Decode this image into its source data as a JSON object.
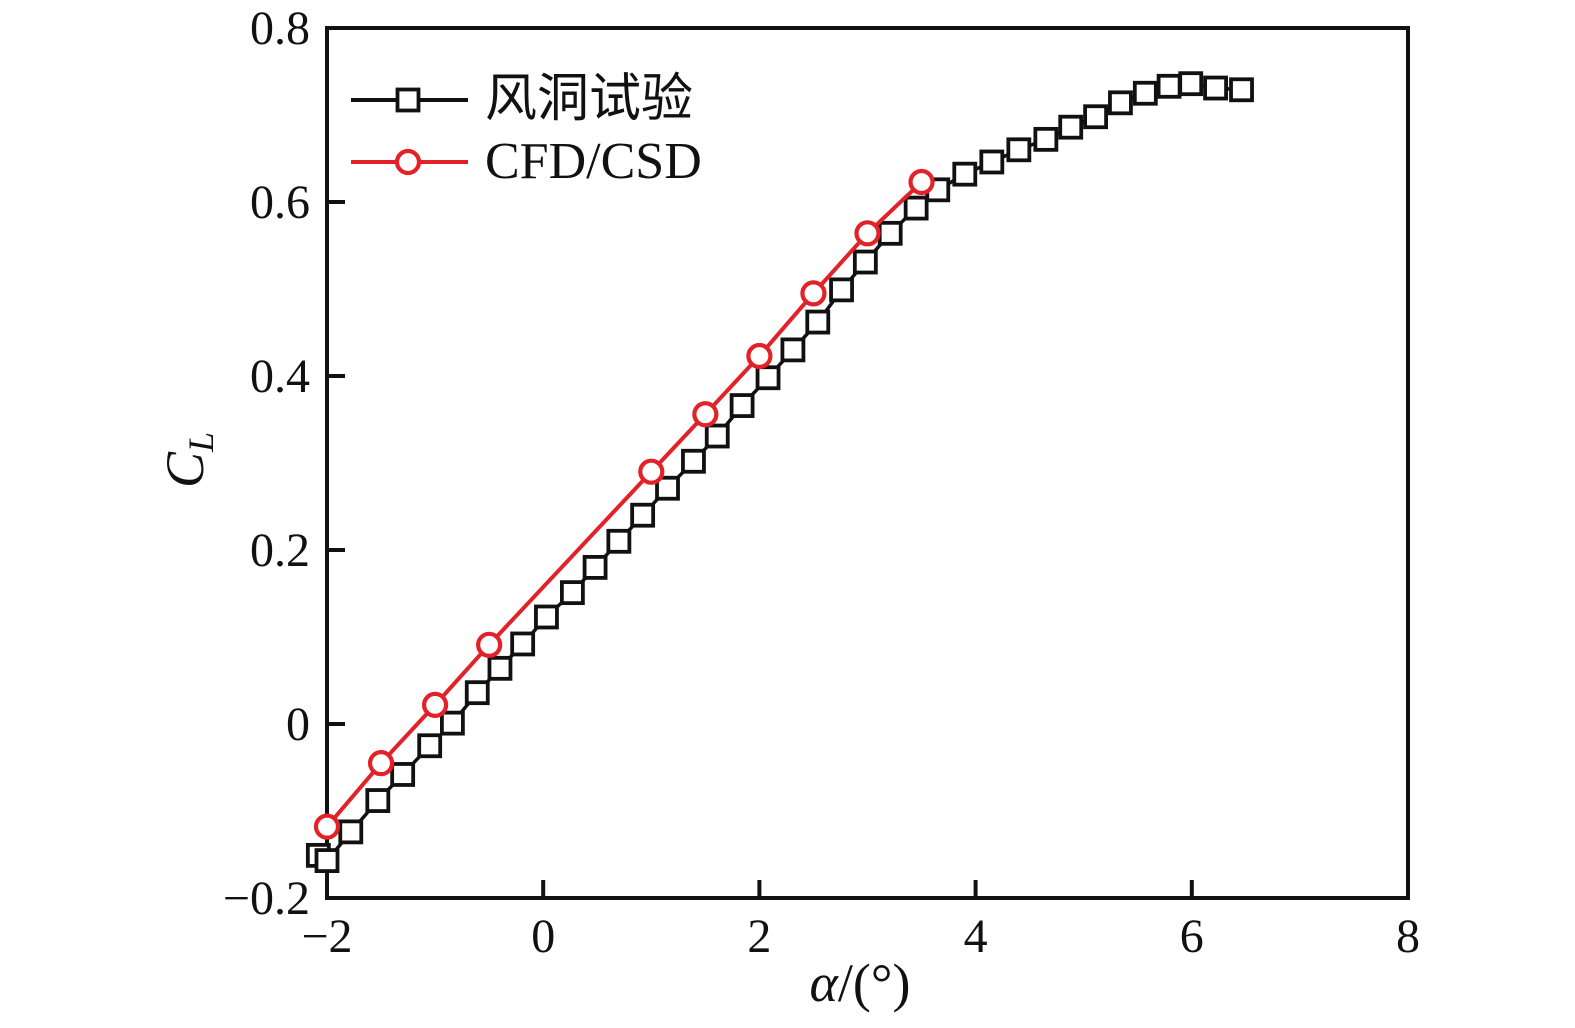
{
  "figure": {
    "background": "#ffffff",
    "text_color": "#111111"
  },
  "chart_data": {
    "type": "line",
    "title": "",
    "xlabel": "α/(°)",
    "ylabel": "C_L",
    "xlim": [
      -2,
      8
    ],
    "ylim": [
      -0.2,
      0.8
    ],
    "grid": false,
    "legend_position": "top-left",
    "axes": {
      "x": {
        "label_symbol": "α",
        "label_rest": "/(°)",
        "ticks": [
          {
            "v": -2,
            "label": "−2"
          },
          {
            "v": 0,
            "label": "0"
          },
          {
            "v": 2,
            "label": "2"
          },
          {
            "v": 4,
            "label": "4"
          },
          {
            "v": 6,
            "label": "6"
          },
          {
            "v": 8,
            "label": "8"
          }
        ]
      },
      "y": {
        "label_main": "C",
        "label_sub": "L",
        "ticks": [
          {
            "v": -0.2,
            "label": "−0.2"
          },
          {
            "v": 0,
            "label": "0"
          },
          {
            "v": 0.2,
            "label": "0.2"
          },
          {
            "v": 0.4,
            "label": "0.4"
          },
          {
            "v": 0.6,
            "label": "0.6"
          },
          {
            "v": 0.8,
            "label": "0.8"
          }
        ]
      }
    },
    "series": [
      {
        "name": "风洞试验",
        "color": "#111111",
        "marker": "square",
        "line_width": 3.5,
        "points": [
          [
            -2.08,
            -0.151
          ],
          [
            -2.0,
            -0.157
          ],
          [
            -1.78,
            -0.124
          ],
          [
            -1.53,
            -0.088
          ],
          [
            -1.3,
            -0.058
          ],
          [
            -1.05,
            -0.025
          ],
          [
            -0.84,
            0.001
          ],
          [
            -0.61,
            0.036
          ],
          [
            -0.4,
            0.064
          ],
          [
            -0.19,
            0.092
          ],
          [
            0.03,
            0.123
          ],
          [
            0.27,
            0.151
          ],
          [
            0.48,
            0.18
          ],
          [
            0.7,
            0.21
          ],
          [
            0.92,
            0.24
          ],
          [
            1.15,
            0.271
          ],
          [
            1.39,
            0.302
          ],
          [
            1.61,
            0.331
          ],
          [
            1.84,
            0.366
          ],
          [
            2.08,
            0.398
          ],
          [
            2.31,
            0.43
          ],
          [
            2.54,
            0.462
          ],
          [
            2.76,
            0.499
          ],
          [
            2.98,
            0.531
          ],
          [
            3.21,
            0.564
          ],
          [
            3.45,
            0.593
          ],
          [
            3.65,
            0.614
          ],
          [
            3.9,
            0.632
          ],
          [
            4.15,
            0.646
          ],
          [
            4.4,
            0.66
          ],
          [
            4.65,
            0.672
          ],
          [
            4.88,
            0.686
          ],
          [
            5.11,
            0.698
          ],
          [
            5.34,
            0.714
          ],
          [
            5.57,
            0.725
          ],
          [
            5.79,
            0.733
          ],
          [
            5.99,
            0.736
          ],
          [
            6.22,
            0.731
          ],
          [
            6.46,
            0.729
          ]
        ]
      },
      {
        "name": "CFD/CSD",
        "color": "#e32128",
        "marker": "circle",
        "line_width": 4,
        "points": [
          [
            -2.0,
            -0.118
          ],
          [
            -1.5,
            -0.045
          ],
          [
            -1.0,
            0.022
          ],
          [
            -0.5,
            0.091
          ],
          [
            1.0,
            0.29
          ],
          [
            1.5,
            0.356
          ],
          [
            2.0,
            0.423
          ],
          [
            2.5,
            0.495
          ],
          [
            3.0,
            0.564
          ],
          [
            3.5,
            0.623
          ]
        ]
      }
    ]
  }
}
